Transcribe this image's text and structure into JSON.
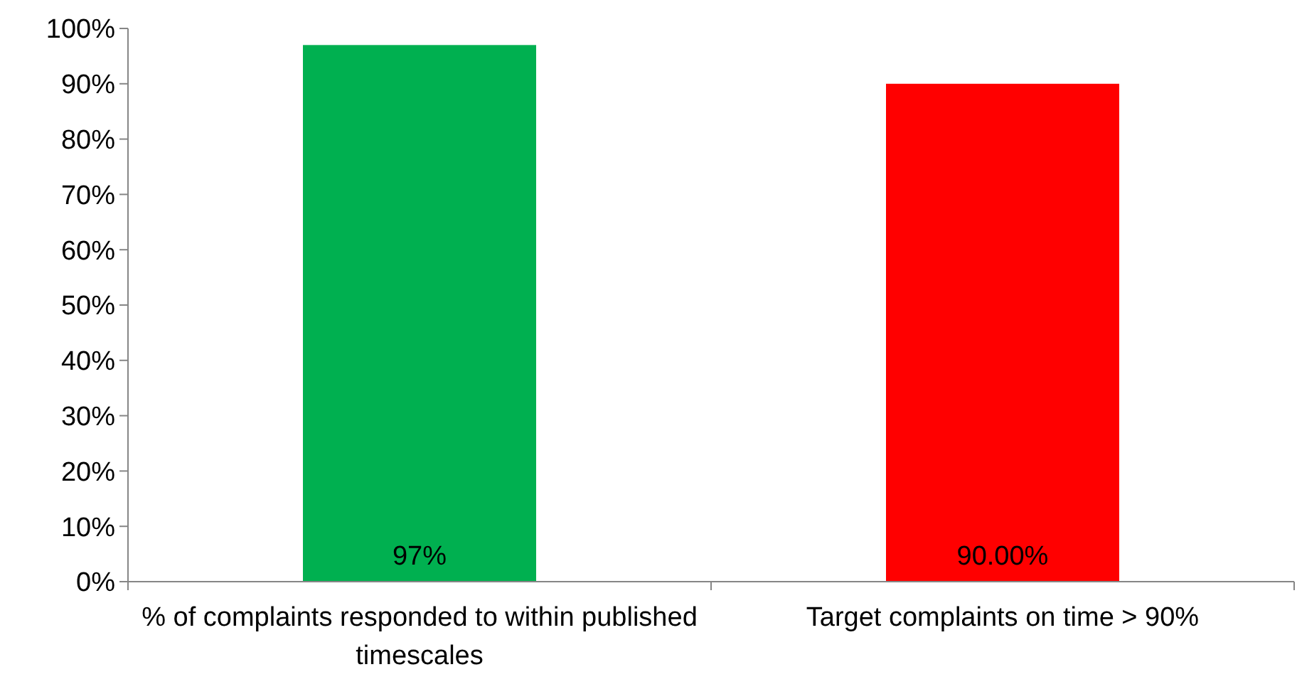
{
  "chart_data": {
    "type": "bar",
    "categories": [
      "% of complaints responded to within published timescales",
      "Target complaints on time > 90%"
    ],
    "values": [
      97,
      90
    ],
    "colors": [
      "#00b050",
      "#ff0000"
    ],
    "value_labels": [
      "97%",
      "90.00%"
    ],
    "ylim": [
      0,
      100
    ],
    "yticks": [
      {
        "value": 0,
        "label": "0%"
      },
      {
        "value": 10,
        "label": "10%"
      },
      {
        "value": 20,
        "label": "20%"
      },
      {
        "value": 30,
        "label": "30%"
      },
      {
        "value": 40,
        "label": "40%"
      },
      {
        "value": 50,
        "label": "50%"
      },
      {
        "value": 60,
        "label": "60%"
      },
      {
        "value": 70,
        "label": "70%"
      },
      {
        "value": 80,
        "label": "80%"
      },
      {
        "value": 90,
        "label": "90%"
      },
      {
        "value": 100,
        "label": "100%"
      }
    ],
    "grid": false
  }
}
